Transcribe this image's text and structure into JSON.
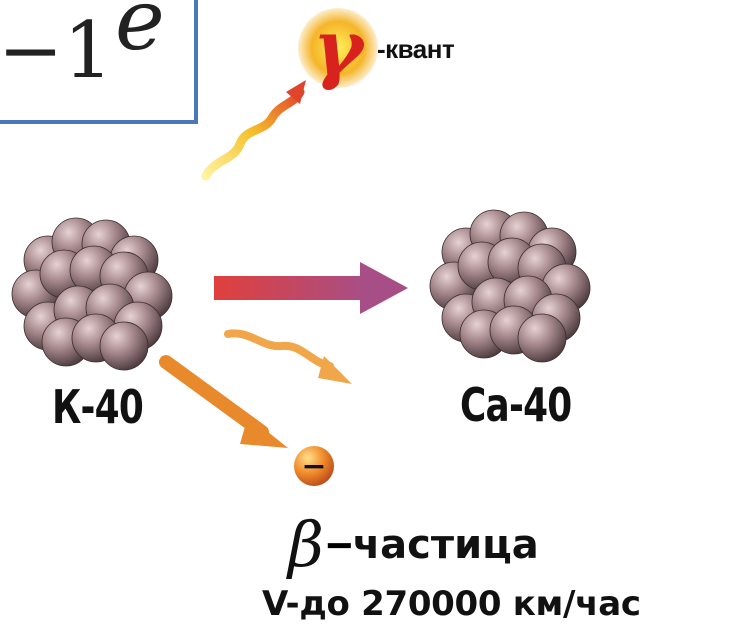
{
  "formula": {
    "prefix": "−1",
    "symbol": "e"
  },
  "gamma": {
    "symbol": "γ",
    "label": "-квант"
  },
  "parent_nucleus": {
    "label": "К-40"
  },
  "daughter_nucleus": {
    "label": "Ca-40"
  },
  "beta_particle": {
    "symbol": "β",
    "charge": "−",
    "dash": "−",
    "label": "частица"
  },
  "speed": {
    "label": "V-до 270000 км/час"
  },
  "colors": {
    "frame": "#4a78b8",
    "nucleon": "#8a6e72",
    "main_arrow_start": "#e0403c",
    "main_arrow_end": "#a84e86",
    "beta_arrow": "#e8892c",
    "gamma_arrow": "#f0c020",
    "small_wave": "#f1a64a"
  }
}
